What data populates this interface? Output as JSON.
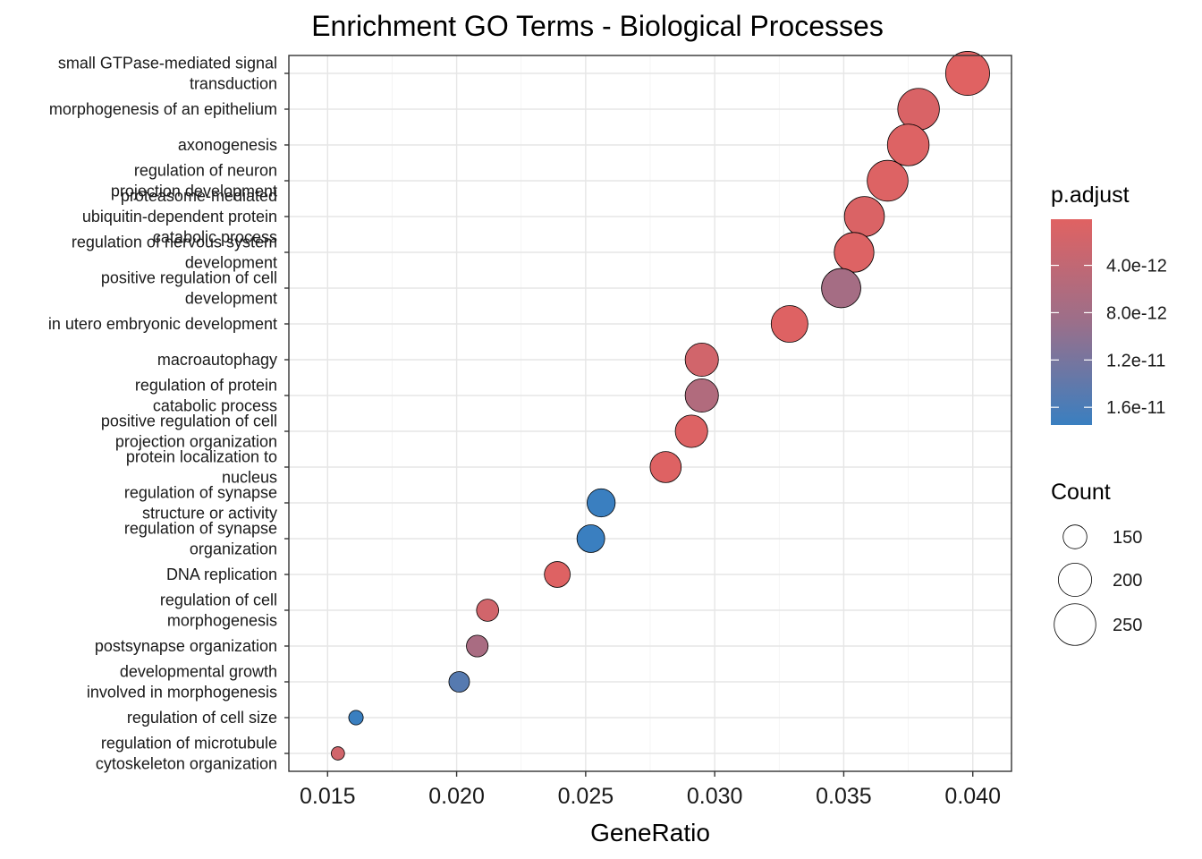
{
  "chart_data": {
    "type": "scatter",
    "title": "Enrichment GO Terms - Biological Processes",
    "xlabel": "GeneRatio",
    "ylabel": "",
    "xlim": [
      0.0135,
      0.0415
    ],
    "x_ticks": [
      "0.015",
      "0.020",
      "0.025",
      "0.030",
      "0.035",
      "0.040"
    ],
    "grid": true,
    "terms": [
      {
        "label": "small GTPase-mediated signal\ntransduction",
        "x": 0.0398,
        "count": 265,
        "padj": 1e-13
      },
      {
        "label": "morphogenesis of an epithelium",
        "x": 0.0379,
        "count": 250,
        "padj": 1e-12
      },
      {
        "label": "axonogenesis",
        "x": 0.0375,
        "count": 250,
        "padj": 5e-13
      },
      {
        "label": "regulation of neuron\nprojection development",
        "x": 0.0367,
        "count": 245,
        "padj": 5e-13
      },
      {
        "label": "proteasome-mediated\nubiquitin-dependent protein\ncatabolic process",
        "x": 0.0358,
        "count": 240,
        "padj": 8e-13
      },
      {
        "label": "regulation of nervous system\ndevelopment",
        "x": 0.0354,
        "count": 238,
        "padj": 5e-13
      },
      {
        "label": "positive regulation of cell\ndevelopment",
        "x": 0.0349,
        "count": 235,
        "padj": 7.5e-12
      },
      {
        "label": "in utero embryonic development",
        "x": 0.0329,
        "count": 220,
        "padj": 3e-13
      },
      {
        "label": "macroautophagy",
        "x": 0.0295,
        "count": 200,
        "padj": 2e-12
      },
      {
        "label": "regulation of protein\ncatabolic process",
        "x": 0.0295,
        "count": 200,
        "padj": 6e-12
      },
      {
        "label": "positive regulation of cell\nprojection organization",
        "x": 0.0291,
        "count": 195,
        "padj": 5e-13
      },
      {
        "label": "protein localization to\nnucleus",
        "x": 0.0281,
        "count": 188,
        "padj": 3e-13
      },
      {
        "label": "regulation of synapse\nstructure or activity",
        "x": 0.0256,
        "count": 172,
        "padj": 1.8e-11
      },
      {
        "label": "regulation of synapse\norganization",
        "x": 0.0252,
        "count": 170,
        "padj": 1.8e-11
      },
      {
        "label": "DNA replication",
        "x": 0.0239,
        "count": 160,
        "padj": 3e-13
      },
      {
        "label": "regulation of cell\nmorphogenesis",
        "x": 0.0212,
        "count": 142,
        "padj": 2e-12
      },
      {
        "label": "postsynapse organization",
        "x": 0.0208,
        "count": 140,
        "padj": 7e-12
      },
      {
        "label": "developmental growth\ninvolved in morphogenesis",
        "x": 0.0201,
        "count": 135,
        "padj": 1.5e-11
      },
      {
        "label": "regulation of cell size",
        "x": 0.0161,
        "count": 108,
        "padj": 1.8e-11
      },
      {
        "label": "regulation of microtubule\ncytoskeleton organization",
        "x": 0.0154,
        "count": 103,
        "padj": 2e-12
      }
    ],
    "color_legend": {
      "title": "p.adjust",
      "ticks": [
        {
          "label": "4.0e-12",
          "value": 4e-12
        },
        {
          "label": "8.0e-12",
          "value": 8e-12
        },
        {
          "label": "1.2e-11",
          "value": 1.2e-11
        },
        {
          "label": "1.6e-11",
          "value": 1.6e-11
        }
      ],
      "range": [
        1e-13,
        1.75e-11
      ],
      "color_low": "#e06262",
      "color_mid": "#9b6f8a",
      "color_high": "#3a7fc0"
    },
    "size_legend": {
      "title": "Count",
      "items": [
        {
          "label": "150",
          "value": 150
        },
        {
          "label": "200",
          "value": 200
        },
        {
          "label": "250",
          "value": 250
        }
      ]
    }
  }
}
